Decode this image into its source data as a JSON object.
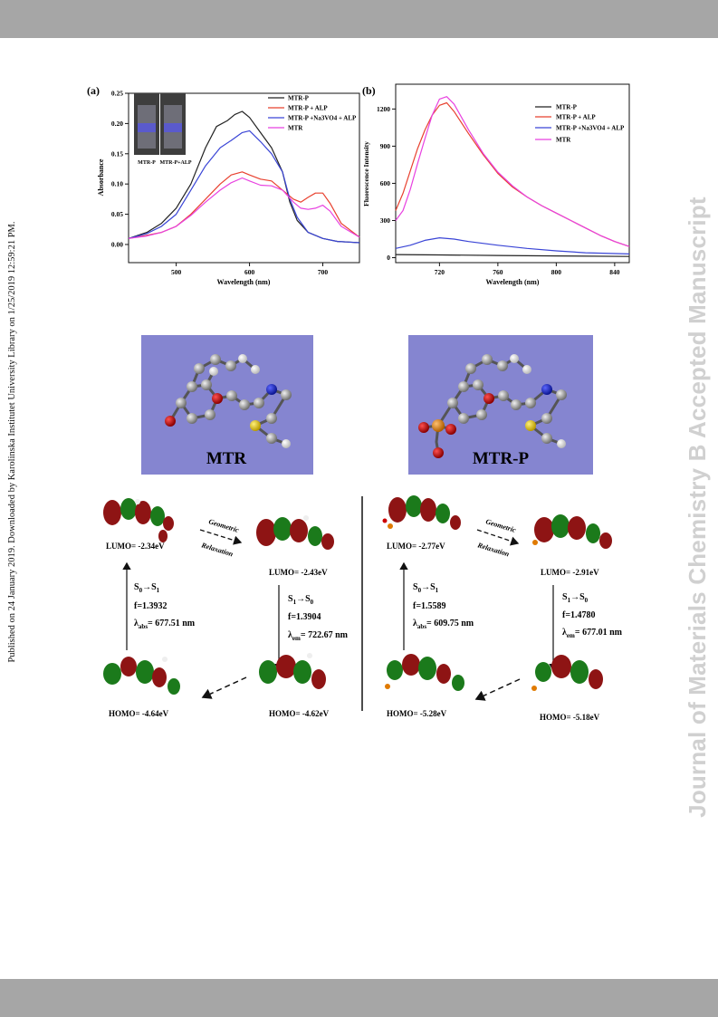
{
  "side_note": "Published on 24 January 2019. Downloaded by Karolinska Institutet University Library on 1/25/2019 12:59:21 PM.",
  "watermark": "Journal of Materials Chemistry B Accepted Manuscript",
  "colors": {
    "band": "#a6a6a6",
    "black": "#222222",
    "red": "#e8412f",
    "blue": "#3a45d6",
    "magenta": "#e842e0",
    "mol_bg": "#8585d0",
    "lobe_red": "#8e1414",
    "lobe_green": "#1b7a1b"
  },
  "chart_data": [
    {
      "panel": "(a)",
      "type": "line",
      "xlabel": "Wavelength (nm)",
      "ylabel": "Absorbance",
      "xlim": [
        435,
        750
      ],
      "ylim": [
        -0.03,
        0.25
      ],
      "xticks": [
        "500",
        "600",
        "700"
      ],
      "yticks": [
        "0.00",
        "0.05",
        "0.10",
        "0.15",
        "0.20",
        "0.25"
      ],
      "legend_position": "top-right",
      "inset_labels": [
        "MTR-P",
        "MTR-P+ALP"
      ],
      "series": [
        {
          "name": "MTR-P",
          "color": "#222222",
          "x": [
            435,
            460,
            480,
            500,
            520,
            540,
            555,
            570,
            580,
            590,
            600,
            615,
            630,
            645,
            655,
            665,
            680,
            700,
            720,
            750
          ],
          "y": [
            0.01,
            0.02,
            0.035,
            0.06,
            0.1,
            0.16,
            0.195,
            0.205,
            0.215,
            0.22,
            0.21,
            0.185,
            0.16,
            0.12,
            0.07,
            0.04,
            0.02,
            0.01,
            0.005,
            0.003
          ]
        },
        {
          "name": "MTR-P + ALP",
          "color": "#e8412f",
          "x": [
            435,
            460,
            480,
            500,
            520,
            540,
            560,
            575,
            590,
            600,
            615,
            630,
            645,
            660,
            670,
            680,
            690,
            700,
            710,
            725,
            750
          ],
          "y": [
            0.01,
            0.015,
            0.02,
            0.03,
            0.05,
            0.075,
            0.1,
            0.115,
            0.12,
            0.115,
            0.108,
            0.105,
            0.09,
            0.075,
            0.07,
            0.078,
            0.085,
            0.085,
            0.068,
            0.035,
            0.012
          ]
        },
        {
          "name": "MTR-P +Na3VO4 + ALP",
          "color": "#3a45d6",
          "x": [
            435,
            460,
            480,
            500,
            520,
            540,
            560,
            575,
            590,
            600,
            615,
            630,
            645,
            655,
            665,
            680,
            700,
            720,
            750
          ],
          "y": [
            0.01,
            0.018,
            0.03,
            0.05,
            0.09,
            0.13,
            0.16,
            0.172,
            0.185,
            0.188,
            0.17,
            0.15,
            0.12,
            0.075,
            0.045,
            0.02,
            0.01,
            0.005,
            0.003
          ]
        },
        {
          "name": "MTR",
          "color": "#e842e0",
          "x": [
            435,
            460,
            480,
            500,
            520,
            540,
            560,
            575,
            590,
            600,
            615,
            630,
            645,
            660,
            670,
            680,
            690,
            700,
            710,
            725,
            750
          ],
          "y": [
            0.01,
            0.014,
            0.02,
            0.03,
            0.048,
            0.07,
            0.09,
            0.102,
            0.11,
            0.105,
            0.098,
            0.097,
            0.09,
            0.07,
            0.06,
            0.058,
            0.06,
            0.065,
            0.055,
            0.03,
            0.012
          ]
        }
      ]
    },
    {
      "panel": "(b)",
      "type": "line",
      "xlabel": "Wavelength (nm)",
      "ylabel": "Fluorescence Intensity",
      "xlim": [
        690,
        850
      ],
      "ylim": [
        -40,
        1400
      ],
      "xticks": [
        "720",
        "760",
        "800",
        "840"
      ],
      "yticks": [
        "0",
        "300",
        "600",
        "900",
        "1200"
      ],
      "legend_position": "top-right",
      "series": [
        {
          "name": "MTR-P",
          "color": "#222222",
          "x": [
            690,
            720,
            760,
            800,
            850
          ],
          "y": [
            25,
            22,
            18,
            14,
            10
          ]
        },
        {
          "name": "MTR-P + ALP",
          "color": "#e8412f",
          "x": [
            690,
            695,
            700,
            705,
            710,
            715,
            720,
            725,
            730,
            740,
            750,
            760,
            770,
            780,
            790,
            800,
            810,
            820,
            830,
            840,
            850
          ],
          "y": [
            380,
            520,
            700,
            880,
            1030,
            1150,
            1230,
            1250,
            1180,
            1000,
            830,
            680,
            570,
            490,
            420,
            360,
            300,
            240,
            180,
            130,
            90
          ]
        },
        {
          "name": "MTR-P +Na3VO4 + ALP",
          "color": "#3a45d6",
          "x": [
            690,
            700,
            710,
            720,
            730,
            740,
            760,
            780,
            800,
            820,
            850
          ],
          "y": [
            75,
            100,
            140,
            160,
            150,
            130,
            100,
            75,
            55,
            40,
            30
          ]
        },
        {
          "name": "MTR",
          "color": "#e842e0",
          "x": [
            690,
            695,
            700,
            705,
            710,
            715,
            720,
            725,
            730,
            740,
            750,
            760,
            770,
            780,
            790,
            800,
            810,
            820,
            830,
            840,
            850
          ],
          "y": [
            300,
            380,
            550,
            760,
            960,
            1150,
            1280,
            1300,
            1240,
            1030,
            840,
            690,
            580,
            490,
            420,
            360,
            300,
            240,
            180,
            130,
            90
          ]
        }
      ]
    }
  ],
  "molecules": {
    "left_label": "MTR",
    "right_label": "MTR-P"
  },
  "left": {
    "lumo_a": "LUMO= -2.34eV",
    "lumo_b": "LUMO= -2.43eV",
    "homo_a": "HOMO= -4.64eV",
    "homo_b": "HOMO= -4.62eV",
    "relax_1": "Geometric",
    "relax_2": "Relaxation",
    "abs_f": "f=1.3932",
    "abs_nm": "= 677.51 nm",
    "em_f": "f=1.3904",
    "em_nm": "= 722.67 nm"
  },
  "right": {
    "lumo_a": "LUMO= -2.77eV",
    "lumo_b": "LUMO= -2.91eV",
    "homo_a": "HOMO= -5.28eV",
    "homo_b": "HOMO= -5.18eV",
    "relax_1": "Geometric",
    "relax_2": "Relaxation",
    "abs_f": "f=1.5589",
    "abs_nm": "= 609.75 nm",
    "em_f": "f=1.4780",
    "em_nm": "= 677.01 nm"
  }
}
